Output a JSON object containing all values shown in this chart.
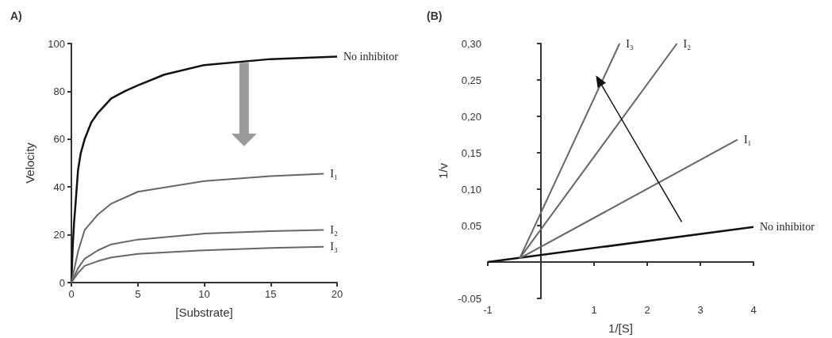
{
  "chart_data": [
    {
      "type": "line",
      "title": "A)",
      "xlabel": "[Substrate]",
      "ylabel": "Velocity",
      "xlim": [
        0,
        20
      ],
      "ylim": [
        0,
        100
      ],
      "xticks": [
        0,
        5,
        10,
        15,
        20
      ],
      "yticks": [
        0,
        20,
        40,
        60,
        80,
        100
      ],
      "grid": false,
      "marker": "none",
      "series": [
        {
          "name": "No inhibitor",
          "color": "#111111",
          "x": [
            0,
            0.1,
            0.2,
            0.3,
            0.5,
            0.7,
            1,
            1.5,
            2,
            3,
            4,
            5,
            7,
            10,
            15,
            20
          ],
          "values": [
            0,
            15,
            25,
            32,
            47,
            54,
            60,
            67,
            71,
            77,
            80,
            82.5,
            87,
            91,
            93.5,
            94.5
          ]
        },
        {
          "name": "I₁",
          "color": "#666666",
          "x": [
            0,
            0.5,
            1,
            2,
            3,
            5,
            10,
            15,
            19
          ],
          "values": [
            0,
            13,
            22,
            28.5,
            33,
            38,
            42.5,
            44.5,
            45.5
          ]
        },
        {
          "name": "I₂",
          "color": "#666666",
          "x": [
            0,
            0.5,
            1,
            2,
            3,
            5,
            10,
            15,
            19
          ],
          "values": [
            0,
            6,
            10,
            13.5,
            16,
            18,
            20.5,
            21.5,
            22
          ]
        },
        {
          "name": "I₃",
          "color": "#666666",
          "x": [
            0,
            0.5,
            1,
            2,
            3,
            5,
            10,
            15,
            19
          ],
          "values": [
            0,
            4,
            7,
            9,
            10.5,
            12,
            13.5,
            14.5,
            15
          ]
        }
      ]
    },
    {
      "type": "line",
      "title": "(B)",
      "xlabel": "1/[S]",
      "ylabel": "1/v",
      "xlim": [
        -1,
        4
      ],
      "ylim": [
        -0.05,
        0.3
      ],
      "xticks": [
        -1,
        1,
        2,
        3,
        4
      ],
      "yticks": [
        {
          "value": -0.05,
          "label": "-0.05"
        },
        {
          "value": 0.05,
          "label": "0.05"
        },
        {
          "value": 0.1,
          "label": "0,10"
        },
        {
          "value": 0.15,
          "label": "0,15"
        },
        {
          "value": 0.2,
          "label": "0,20"
        },
        {
          "value": 0.25,
          "label": "0,25"
        },
        {
          "value": 0.3,
          "label": "0,30"
        }
      ],
      "grid": false,
      "marker": "none",
      "series": [
        {
          "name": "No inhibitor",
          "color": "#111111",
          "x": [
            -1,
            4
          ],
          "values": [
            0,
            0.048
          ]
        },
        {
          "name": "I₁",
          "color": "#666666",
          "x": [
            -0.4,
            3.7
          ],
          "values": [
            0.005,
            0.168
          ]
        },
        {
          "name": "I₂",
          "color": "#666666",
          "x": [
            -0.4,
            2.56
          ],
          "values": [
            0.005,
            0.3
          ]
        },
        {
          "name": "I₃",
          "color": "#666666",
          "x": [
            -0.4,
            1.48
          ],
          "values": [
            0.005,
            0.3
          ]
        }
      ]
    }
  ]
}
